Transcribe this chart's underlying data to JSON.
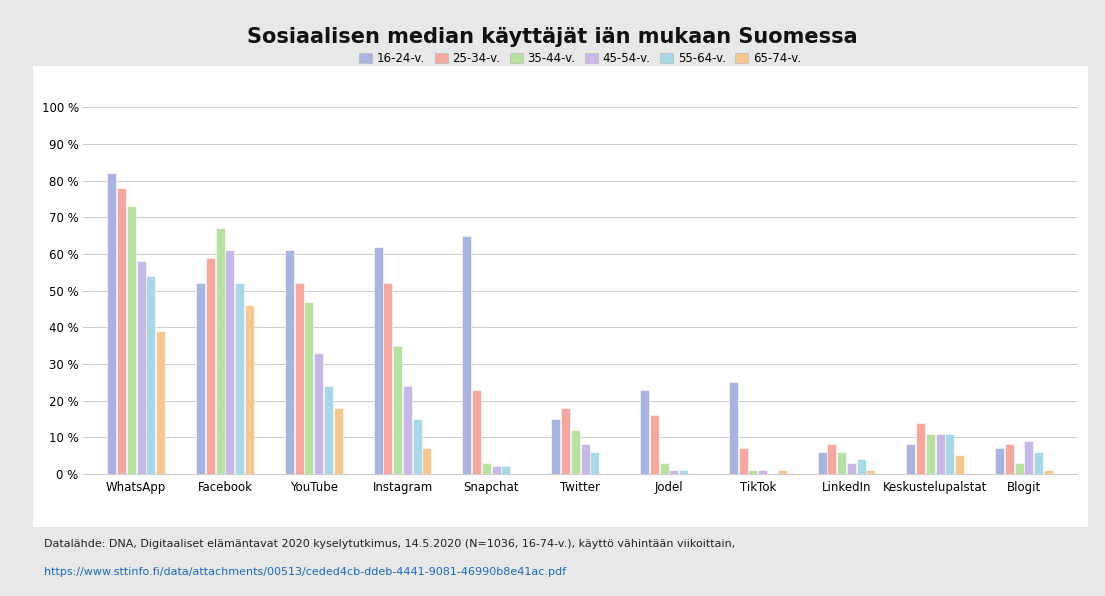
{
  "title": "Sosiaalisen median käyttäjät iän mukaan Suomessa",
  "categories": [
    "WhatsApp",
    "Facebook",
    "YouTube",
    "Instagram",
    "Snapchat",
    "Twitter",
    "Jodel",
    "TikTok",
    "LinkedIn",
    "Keskustelupalstat",
    "Blogit"
  ],
  "age_groups": [
    "16-24-v.",
    "25-34-v.",
    "35-44-v.",
    "45-54-v.",
    "55-64-v.",
    "65-74-v."
  ],
  "colors": [
    "#aab4e0",
    "#f4a8a0",
    "#b8e0a0",
    "#c8b8e8",
    "#a8d8e8",
    "#f4c890"
  ],
  "data": {
    "WhatsApp": [
      82,
      78,
      73,
      58,
      54,
      39
    ],
    "Facebook": [
      52,
      59,
      67,
      61,
      52,
      46
    ],
    "YouTube": [
      61,
      52,
      47,
      33,
      24,
      18
    ],
    "Instagram": [
      62,
      52,
      35,
      24,
      15,
      7
    ],
    "Snapchat": [
      65,
      23,
      3,
      2,
      2,
      0
    ],
    "Twitter": [
      15,
      18,
      12,
      8,
      6,
      0
    ],
    "Jodel": [
      23,
      16,
      3,
      1,
      1,
      0
    ],
    "TikTok": [
      25,
      7,
      1,
      1,
      0,
      1
    ],
    "LinkedIn": [
      6,
      8,
      6,
      3,
      4,
      1
    ],
    "Keskustelupalstat": [
      8,
      14,
      11,
      11,
      11,
      5
    ],
    "Blogit": [
      7,
      8,
      3,
      9,
      6,
      1
    ]
  },
  "ylim": [
    0,
    100
  ],
  "yticks": [
    0,
    10,
    20,
    30,
    40,
    50,
    60,
    70,
    80,
    90,
    100
  ],
  "ytick_labels": [
    "0 %",
    "10 %",
    "20 %",
    "30 %",
    "40 %",
    "50 %",
    "60 %",
    "70 %",
    "80 %",
    "90 %",
    "100 %"
  ],
  "footer_text": "Datalähde: DNA, Digitaaliset elämäntavat 2020 kyselytutkimus, 14.5.2020 (N=1036, 16-74-v.), käyttö vähintään viikoittain,",
  "footer_link": "https://www.sttinfo.fi/data/attachments/00513/ceded4cb-ddeb-4441-9081-46990b8e41ac.pdf",
  "outer_bg_color": "#e8e8e8",
  "panel_bg_color": "#ffffff",
  "plot_bg_color": "#ffffff",
  "grid_color": "#cccccc",
  "bar_width": 0.11,
  "title_fontsize": 15,
  "legend_fontsize": 8.5,
  "tick_fontsize": 8.5,
  "footer_fontsize": 8.0
}
